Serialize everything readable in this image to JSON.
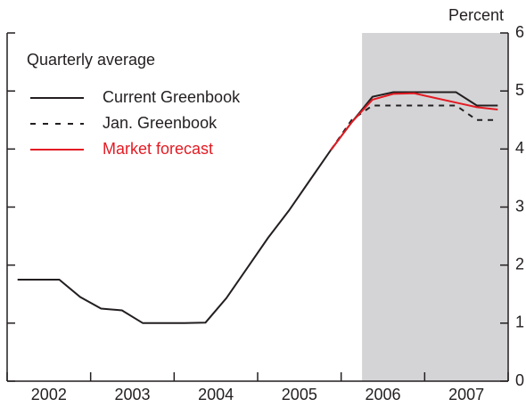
{
  "chart_data": {
    "type": "line",
    "y_axis_label": "Percent",
    "annotation": "Quarterly average",
    "x_categories": [
      "2002",
      "2003",
      "2004",
      "2005",
      "2006",
      "2007"
    ],
    "xlim": [
      2002,
      2008
    ],
    "xticks": [
      2002,
      2003,
      2004,
      2005,
      2006,
      2007,
      2008
    ],
    "ylim": [
      0,
      6
    ],
    "yticks": [
      0,
      1,
      2,
      3,
      4,
      5,
      6
    ],
    "shaded_from": 2006.25,
    "shade_color": "#d4d4d6",
    "x": [
      2002.125,
      2002.375,
      2002.625,
      2002.875,
      2003.125,
      2003.375,
      2003.625,
      2003.875,
      2004.125,
      2004.375,
      2004.625,
      2004.875,
      2005.125,
      2005.375,
      2005.625,
      2005.875,
      2006.125,
      2006.375,
      2006.625,
      2006.875,
      2007.125,
      2007.375,
      2007.625,
      2007.875
    ],
    "series": [
      {
        "name": "Current Greenbook",
        "color": "#231f20",
        "dash": "solid",
        "values": [
          1.75,
          1.75,
          1.75,
          1.45,
          1.25,
          1.22,
          1.0,
          1.0,
          1.0,
          1.01,
          1.43,
          1.95,
          2.47,
          2.94,
          3.46,
          3.98,
          4.46,
          4.9,
          4.98,
          4.98,
          4.98,
          4.98,
          4.75,
          4.75
        ]
      },
      {
        "name": "Jan. Greenbook",
        "color": "#231f20",
        "dash": "dashed",
        "values": [
          null,
          null,
          null,
          null,
          null,
          null,
          null,
          null,
          null,
          null,
          null,
          null,
          null,
          null,
          null,
          3.98,
          4.5,
          4.75,
          4.75,
          4.75,
          4.75,
          4.75,
          4.5,
          4.5
        ]
      },
      {
        "name": "Market forecast",
        "color": "#e31b23",
        "dash": "solid",
        "values": [
          null,
          null,
          null,
          null,
          null,
          null,
          null,
          null,
          null,
          null,
          null,
          null,
          null,
          null,
          null,
          3.98,
          4.46,
          4.85,
          4.95,
          4.96,
          4.88,
          4.8,
          4.72,
          4.68
        ]
      }
    ]
  }
}
